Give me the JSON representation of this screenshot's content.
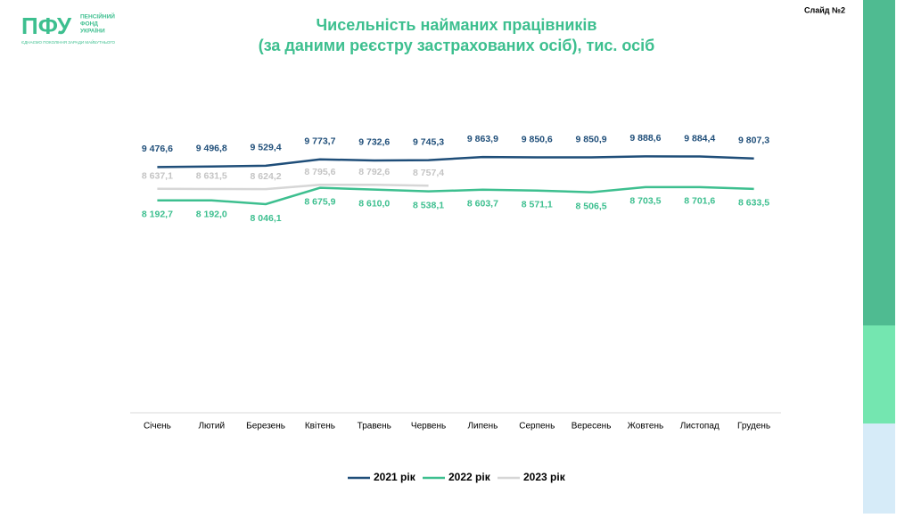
{
  "header": {
    "logo": "ПФУ",
    "org": [
      "ПЕНСІЙНИЙ",
      "ФОНД",
      "УКРАЇНИ"
    ],
    "tagline": "ЄДНАЄМО ПОКОЛІННЯ ЗАРАДИ МАЙБУТНЬОГО"
  },
  "slide": "Слайд №2",
  "chart_data": {
    "type": "line",
    "title": "Чисельність найманих працівників",
    "subtitle": "(за даними реєстру застрахованих осіб), тис. осіб",
    "categories": [
      "Січень",
      "Лютий",
      "Березень",
      "Квітень",
      "Травень",
      "Червень",
      "Липень",
      "Серпень",
      "Вересень",
      "Жовтень",
      "Листопад",
      "Грудень"
    ],
    "ylim": [
      0,
      12000
    ],
    "series": [
      {
        "name": "2021 рік",
        "color": "#1f4e79",
        "values": [
          9476.6,
          9496.8,
          9529.4,
          9773.7,
          9732.6,
          9745.3,
          9863.9,
          9850.6,
          9850.9,
          9888.6,
          9884.4,
          9807.3
        ],
        "value_labels": [
          "9 476,6",
          "9 496,8",
          "9 529,4",
          "9 773,7",
          "9 732,6",
          "9 745,3",
          "9 863,9",
          "9 850,6",
          "9 850,9",
          "9 888,6",
          "9 884,4",
          "9 807,3"
        ]
      },
      {
        "name": "2022 рік",
        "color": "#3dbf8f",
        "values": [
          8192.7,
          8192.0,
          8046.1,
          8675.9,
          8610.0,
          8538.1,
          8603.7,
          8571.1,
          8506.5,
          8703.5,
          8701.6,
          8633.5
        ],
        "value_labels": [
          "8 192,7",
          "8 192,0",
          "8 046,1",
          "8 675,9",
          "8 610,0",
          "8 538,1",
          "8 603,7",
          "8 571,1",
          "8 506,5",
          "8 703,5",
          "8 701,6",
          "8 633,5"
        ]
      },
      {
        "name": "2023 рік",
        "color": "#d6d6d6",
        "values": [
          8637.1,
          8631.5,
          8624.2,
          8795.6,
          8792.6,
          8757.4,
          null,
          null,
          null,
          null,
          null,
          null
        ],
        "value_labels": [
          "8 637,1",
          "8 631,5",
          "8 624,2",
          "8 795,6",
          "8 792,6",
          "8 757,4",
          null,
          null,
          null,
          null,
          null,
          null
        ]
      }
    ]
  }
}
